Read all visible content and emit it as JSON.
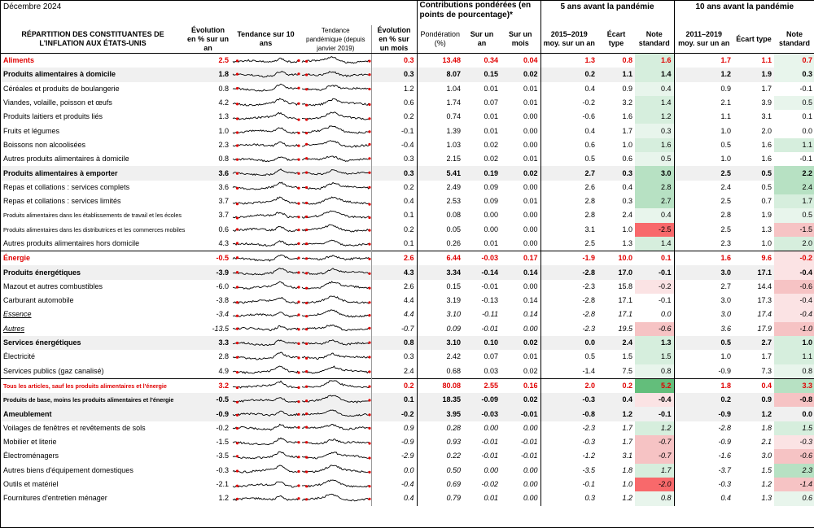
{
  "title": "Décembre 2024",
  "group_headers": {
    "contributions": "Contributions pondérées (en points de pourcentage)*",
    "five_years": "5 ans avant la pandémie",
    "ten_years": "10 ans avant la pandémie"
  },
  "columns": {
    "category": "RÉPARTITION DES CONSTITUANTES DE L'INFLATION AUX ÉTATS-UNIS",
    "yoy": "Évolution en % sur un an",
    "trend10": "Tendance sur 10 ans",
    "trend_pandemic": "Tendance pandémique (depuis janvier 2019)",
    "mom": "Évolution en % sur un mois",
    "weight": "Pondération (%)",
    "c_yoy": "Sur un an",
    "c_mom": "Sur un mois",
    "avg5": "2015–2019 moy. sur un an",
    "sd5": "Écart type",
    "z5": "Note standard",
    "avg10": "2011–2019 moy. sur un an",
    "sd10": "Écart type",
    "z10": "Note standard"
  },
  "colors": {
    "red": "#e00000",
    "green_strong": "#63be7b",
    "green_light": "#e8f5ec",
    "red_strong": "#f8696b",
    "red_light": "#fbe3e4",
    "band": "#f0f0f0"
  },
  "rows": [
    {
      "label": "Aliments",
      "style": "red",
      "yoy": "2.5",
      "mom": "0.3",
      "weight": "13.48",
      "c_yoy": "0.34",
      "c_mom": "0.04",
      "avg5": "1.3",
      "sd5": "0.8",
      "z5": "1.6",
      "avg10": "1.7",
      "sd10": "1.1",
      "z10": "0.7"
    },
    {
      "label": "Produits alimentaires à domicile",
      "style": "bold",
      "yoy": "1.8",
      "mom": "0.3",
      "weight": "8.07",
      "c_yoy": "0.15",
      "c_mom": "0.02",
      "avg5": "0.2",
      "sd5": "1.1",
      "z5": "1.4",
      "avg10": "1.2",
      "sd10": "1.9",
      "z10": "0.3"
    },
    {
      "label": "Céréales et produits de boulangerie",
      "style": "",
      "yoy": "0.8",
      "mom": "1.2",
      "weight": "1.04",
      "c_yoy": "0.01",
      "c_mom": "0.01",
      "avg5": "0.4",
      "sd5": "0.9",
      "z5": "0.4",
      "avg10": "0.9",
      "sd10": "1.7",
      "z10": "-0.1"
    },
    {
      "label": "Viandes, volaille, poisson et œufs",
      "style": "",
      "yoy": "4.2",
      "mom": "0.6",
      "weight": "1.74",
      "c_yoy": "0.07",
      "c_mom": "0.01",
      "avg5": "-0.2",
      "sd5": "3.2",
      "z5": "1.4",
      "avg10": "2.1",
      "sd10": "3.9",
      "z10": "0.5"
    },
    {
      "label": "Produits laitiers et produits liés",
      "style": "",
      "yoy": "1.3",
      "mom": "0.2",
      "weight": "0.74",
      "c_yoy": "0.01",
      "c_mom": "0.00",
      "avg5": "-0.6",
      "sd5": "1.6",
      "z5": "1.2",
      "avg10": "1.1",
      "sd10": "3.1",
      "z10": "0.1"
    },
    {
      "label": "Fruits et légumes",
      "style": "",
      "yoy": "1.0",
      "mom": "-0.1",
      "weight": "1.39",
      "c_yoy": "0.01",
      "c_mom": "0.00",
      "avg5": "0.4",
      "sd5": "1.7",
      "z5": "0.3",
      "avg10": "1.0",
      "sd10": "2.0",
      "z10": "0.0"
    },
    {
      "label": "Boissons non alcoolisées",
      "style": "",
      "yoy": "2.3",
      "mom": "-0.4",
      "weight": "1.03",
      "c_yoy": "0.02",
      "c_mom": "0.00",
      "avg5": "0.6",
      "sd5": "1.0",
      "z5": "1.6",
      "avg10": "0.5",
      "sd10": "1.6",
      "z10": "1.1"
    },
    {
      "label": "Autres produits alimentaires à domicile",
      "style": "",
      "yoy": "0.8",
      "mom": "0.3",
      "weight": "2.15",
      "c_yoy": "0.02",
      "c_mom": "0.01",
      "avg5": "0.5",
      "sd5": "0.6",
      "z5": "0.5",
      "avg10": "1.0",
      "sd10": "1.6",
      "z10": "-0.1"
    },
    {
      "label": "Produits alimentaires à emporter",
      "style": "bold",
      "yoy": "3.6",
      "mom": "0.3",
      "weight": "5.41",
      "c_yoy": "0.19",
      "c_mom": "0.02",
      "avg5": "2.7",
      "sd5": "0.3",
      "z5": "3.0",
      "avg10": "2.5",
      "sd10": "0.5",
      "z10": "2.2"
    },
    {
      "label": "Repas et collations : services complets",
      "style": "",
      "yoy": "3.6",
      "mom": "0.2",
      "weight": "2.49",
      "c_yoy": "0.09",
      "c_mom": "0.00",
      "avg5": "2.6",
      "sd5": "0.4",
      "z5": "2.8",
      "avg10": "2.4",
      "sd10": "0.5",
      "z10": "2.4"
    },
    {
      "label": "Repas et collations : services limités",
      "style": "",
      "yoy": "3.7",
      "mom": "0.4",
      "weight": "2.53",
      "c_yoy": "0.09",
      "c_mom": "0.01",
      "avg5": "2.8",
      "sd5": "0.3",
      "z5": "2.7",
      "avg10": "2.5",
      "sd10": "0.7",
      "z10": "1.7"
    },
    {
      "label": "Produits alimentaires dans les établissements de travail et les écoles",
      "style": "small",
      "yoy": "3.7",
      "mom": "0.1",
      "weight": "0.08",
      "c_yoy": "0.00",
      "c_mom": "0.00",
      "avg5": "2.8",
      "sd5": "2.4",
      "z5": "0.4",
      "avg10": "2.8",
      "sd10": "1.9",
      "z10": "0.5"
    },
    {
      "label": "Produits alimentaires dans les distributrices et les commerces mobiles",
      "style": "small",
      "yoy": "0.6",
      "mom": "0.2",
      "weight": "0.05",
      "c_yoy": "0.00",
      "c_mom": "0.00",
      "avg5": "3.1",
      "sd5": "1.0",
      "z5": "-2.5",
      "avg10": "2.5",
      "sd10": "1.3",
      "z10": "-1.5"
    },
    {
      "label": "Autres produits alimentaires hors domicile",
      "style": "",
      "yoy": "4.3",
      "mom": "0.1",
      "weight": "0.26",
      "c_yoy": "0.01",
      "c_mom": "0.00",
      "avg5": "2.5",
      "sd5": "1.3",
      "z5": "1.4",
      "avg10": "2.3",
      "sd10": "1.0",
      "z10": "2.0"
    },
    {
      "label": "Énergie",
      "style": "red",
      "yoy": "-0.5",
      "mom": "2.6",
      "weight": "6.44",
      "c_yoy": "-0.03",
      "c_mom": "0.17",
      "avg5": "-1.9",
      "sd5": "10.0",
      "z5": "0.1",
      "avg10": "1.6",
      "sd10": "9.6",
      "z10": "-0.2"
    },
    {
      "label": "Produits énergétiques",
      "style": "bold",
      "yoy": "-3.9",
      "mom": "4.3",
      "weight": "3.34",
      "c_yoy": "-0.14",
      "c_mom": "0.14",
      "avg5": "-2.8",
      "sd5": "17.0",
      "z5": "-0.1",
      "avg10": "3.0",
      "sd10": "17.1",
      "z10": "-0.4"
    },
    {
      "label": "Mazout et autres combustibles",
      "style": "",
      "yoy": "-6.0",
      "mom": "2.6",
      "weight": "0.15",
      "c_yoy": "-0.01",
      "c_mom": "0.00",
      "avg5": "-2.3",
      "sd5": "15.8",
      "z5": "-0.2",
      "avg10": "2.7",
      "sd10": "14.4",
      "z10": "-0.6"
    },
    {
      "label": "Carburant automobile",
      "style": "",
      "yoy": "-3.8",
      "mom": "4.4",
      "weight": "3.19",
      "c_yoy": "-0.13",
      "c_mom": "0.14",
      "avg5": "-2.8",
      "sd5": "17.1",
      "z5": "-0.1",
      "avg10": "3.0",
      "sd10": "17.3",
      "z10": "-0.4"
    },
    {
      "label": "Essence",
      "style": "italic",
      "yoy": "-3.4",
      "mom": "4.4",
      "weight": "3.10",
      "c_yoy": "-0.11",
      "c_mom": "0.14",
      "avg5": "-2.8",
      "sd5": "17.1",
      "z5": "0.0",
      "avg10": "3.0",
      "sd10": "17.4",
      "z10": "-0.4"
    },
    {
      "label": "Autres",
      "style": "italic",
      "yoy": "-13.5",
      "mom": "-0.7",
      "weight": "0.09",
      "c_yoy": "-0.01",
      "c_mom": "0.00",
      "avg5": "-2.3",
      "sd5": "19.5",
      "z5": "-0.6",
      "avg10": "3.6",
      "sd10": "17.9",
      "z10": "-1.0"
    },
    {
      "label": "Services énergétiques",
      "style": "bold",
      "yoy": "3.3",
      "mom": "0.8",
      "weight": "3.10",
      "c_yoy": "0.10",
      "c_mom": "0.02",
      "avg5": "0.0",
      "sd5": "2.4",
      "z5": "1.3",
      "avg10": "0.5",
      "sd10": "2.7",
      "z10": "1.0"
    },
    {
      "label": "Électricité",
      "style": "",
      "yoy": "2.8",
      "mom": "0.3",
      "weight": "2.42",
      "c_yoy": "0.07",
      "c_mom": "0.01",
      "avg5": "0.5",
      "sd5": "1.5",
      "z5": "1.5",
      "avg10": "1.0",
      "sd10": "1.7",
      "z10": "1.1"
    },
    {
      "label": "Services publics (gaz canalisé)",
      "style": "",
      "yoy": "4.9",
      "mom": "2.4",
      "weight": "0.68",
      "c_yoy": "0.03",
      "c_mom": "0.02",
      "avg5": "-1.4",
      "sd5": "7.5",
      "z5": "0.8",
      "avg10": "-0.9",
      "sd10": "7.3",
      "z10": "0.8"
    },
    {
      "label": "Tous les articles, sauf les produits alimentaires et l'énergie",
      "style": "redsmall",
      "yoy": "3.2",
      "mom": "0.2",
      "weight": "80.08",
      "c_yoy": "2.55",
      "c_mom": "0.16",
      "avg5": "2.0",
      "sd5": "0.2",
      "z5": "5.2",
      "avg10": "1.8",
      "sd10": "0.4",
      "z10": "3.3"
    },
    {
      "label": "Produits de base, moins les produits alimentaires et l'énergie",
      "style": "boldsmall",
      "yoy": "-0.5",
      "mom": "0.1",
      "weight": "18.35",
      "c_yoy": "-0.09",
      "c_mom": "0.02",
      "avg5": "-0.3",
      "sd5": "0.4",
      "z5": "-0.4",
      "avg10": "0.2",
      "sd10": "0.9",
      "z10": "-0.8"
    },
    {
      "label": "Ameublement",
      "style": "bold",
      "yoy": "-0.9",
      "mom": "-0.2",
      "weight": "3.95",
      "c_yoy": "-0.03",
      "c_mom": "-0.01",
      "avg5": "-0.8",
      "sd5": "1.2",
      "z5": "-0.1",
      "avg10": "-0.9",
      "sd10": "1.2",
      "z10": "0.0"
    },
    {
      "label": "Voilages de fenêtres et revêtements de sols",
      "style": "",
      "yoy": "-0.2",
      "mom": "0.9",
      "weight": "0.28",
      "c_yoy": "0.00",
      "c_mom": "0.00",
      "avg5": "-2.3",
      "sd5": "1.7",
      "z5": "1.2",
      "avg10": "-2.8",
      "sd10": "1.8",
      "z10": "1.5"
    },
    {
      "label": "Mobilier et literie",
      "style": "",
      "yoy": "-1.5",
      "mom": "-0.9",
      "weight": "0.93",
      "c_yoy": "-0.01",
      "c_mom": "-0.01",
      "avg5": "-0.3",
      "sd5": "1.7",
      "z5": "-0.7",
      "avg10": "-0.9",
      "sd10": "2.1",
      "z10": "-0.3"
    },
    {
      "label": "Électroménagers",
      "style": "",
      "yoy": "-3.5",
      "mom": "-2.9",
      "weight": "0.22",
      "c_yoy": "-0.01",
      "c_mom": "-0.01",
      "avg5": "-1.2",
      "sd5": "3.1",
      "z5": "-0.7",
      "avg10": "-1.6",
      "sd10": "3.0",
      "z10": "-0.6"
    },
    {
      "label": "Autres biens d'équipement domestiques",
      "style": "",
      "yoy": "-0.3",
      "mom": "0.0",
      "weight": "0.50",
      "c_yoy": "0.00",
      "c_mom": "0.00",
      "avg5": "-3.5",
      "sd5": "1.8",
      "z5": "1.7",
      "avg10": "-3.7",
      "sd10": "1.5",
      "z10": "2.3"
    },
    {
      "label": "Outils et matériel",
      "style": "",
      "yoy": "-2.1",
      "mom": "-0.4",
      "weight": "0.69",
      "c_yoy": "-0.02",
      "c_mom": "0.00",
      "avg5": "-0.1",
      "sd5": "1.0",
      "z5": "-2.0",
      "avg10": "-0.3",
      "sd10": "1.2",
      "z10": "-1.4"
    },
    {
      "label": "Fournitures d'entretien ménager",
      "style": "",
      "yoy": "1.2",
      "mom": "0.4",
      "weight": "0.79",
      "c_yoy": "0.01",
      "c_mom": "0.00",
      "avg5": "0.3",
      "sd5": "1.2",
      "z5": "0.8",
      "avg10": "0.4",
      "sd10": "1.3",
      "z10": "0.6"
    }
  ]
}
